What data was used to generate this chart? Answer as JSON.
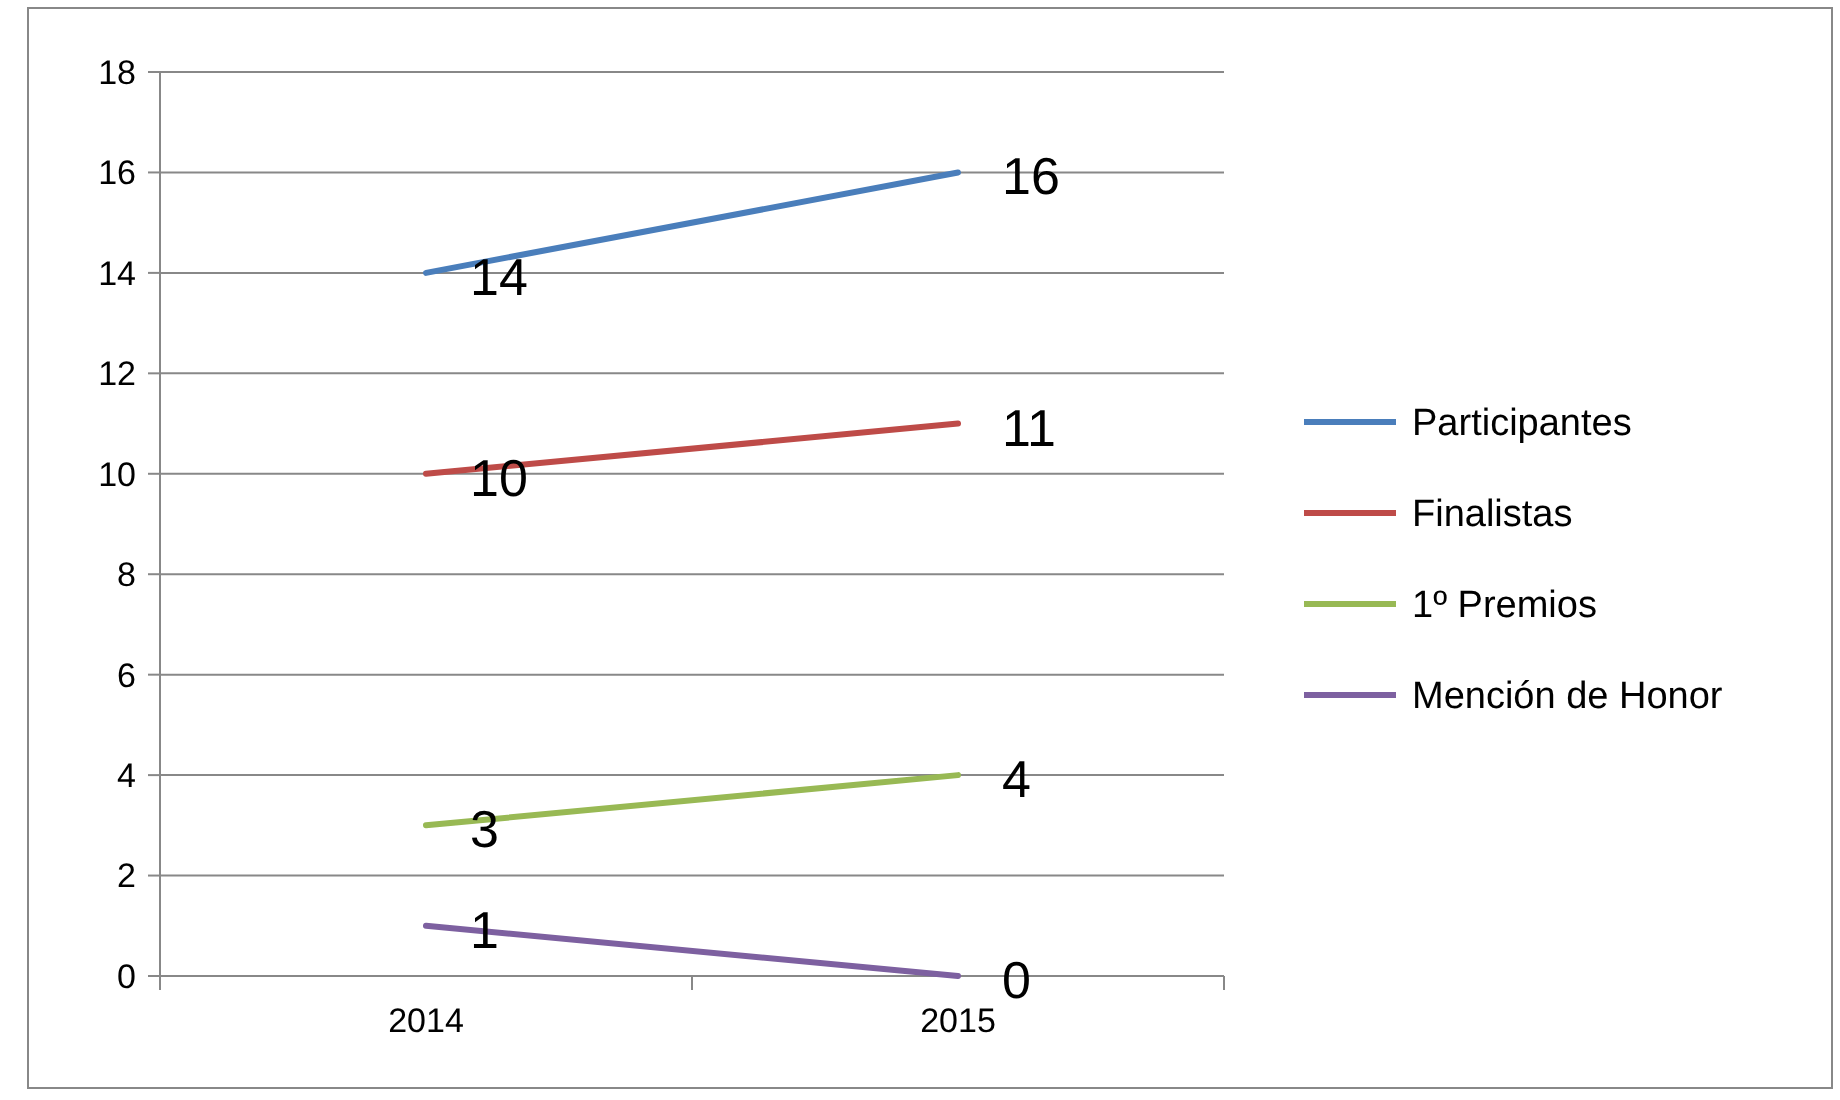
{
  "chart_data": {
    "type": "line",
    "categories": [
      "2014",
      "2015"
    ],
    "series": [
      {
        "name": "Participantes",
        "color": "#4a7ebb",
        "values": [
          14,
          16
        ]
      },
      {
        "name": "Finalistas",
        "color": "#be4b48",
        "values": [
          10,
          11
        ]
      },
      {
        "name": "1º Premios",
        "color": "#98b954",
        "values": [
          3,
          4
        ]
      },
      {
        "name": "Mención de Honor",
        "color": "#7d60a0",
        "values": [
          1,
          0
        ]
      }
    ],
    "ylim": [
      0,
      18
    ],
    "yticks": [
      0,
      2,
      4,
      6,
      8,
      10,
      12,
      14,
      16,
      18
    ],
    "grid": "y",
    "legend": "right",
    "data_labels": true,
    "marker": "none",
    "line_style": "solid"
  }
}
